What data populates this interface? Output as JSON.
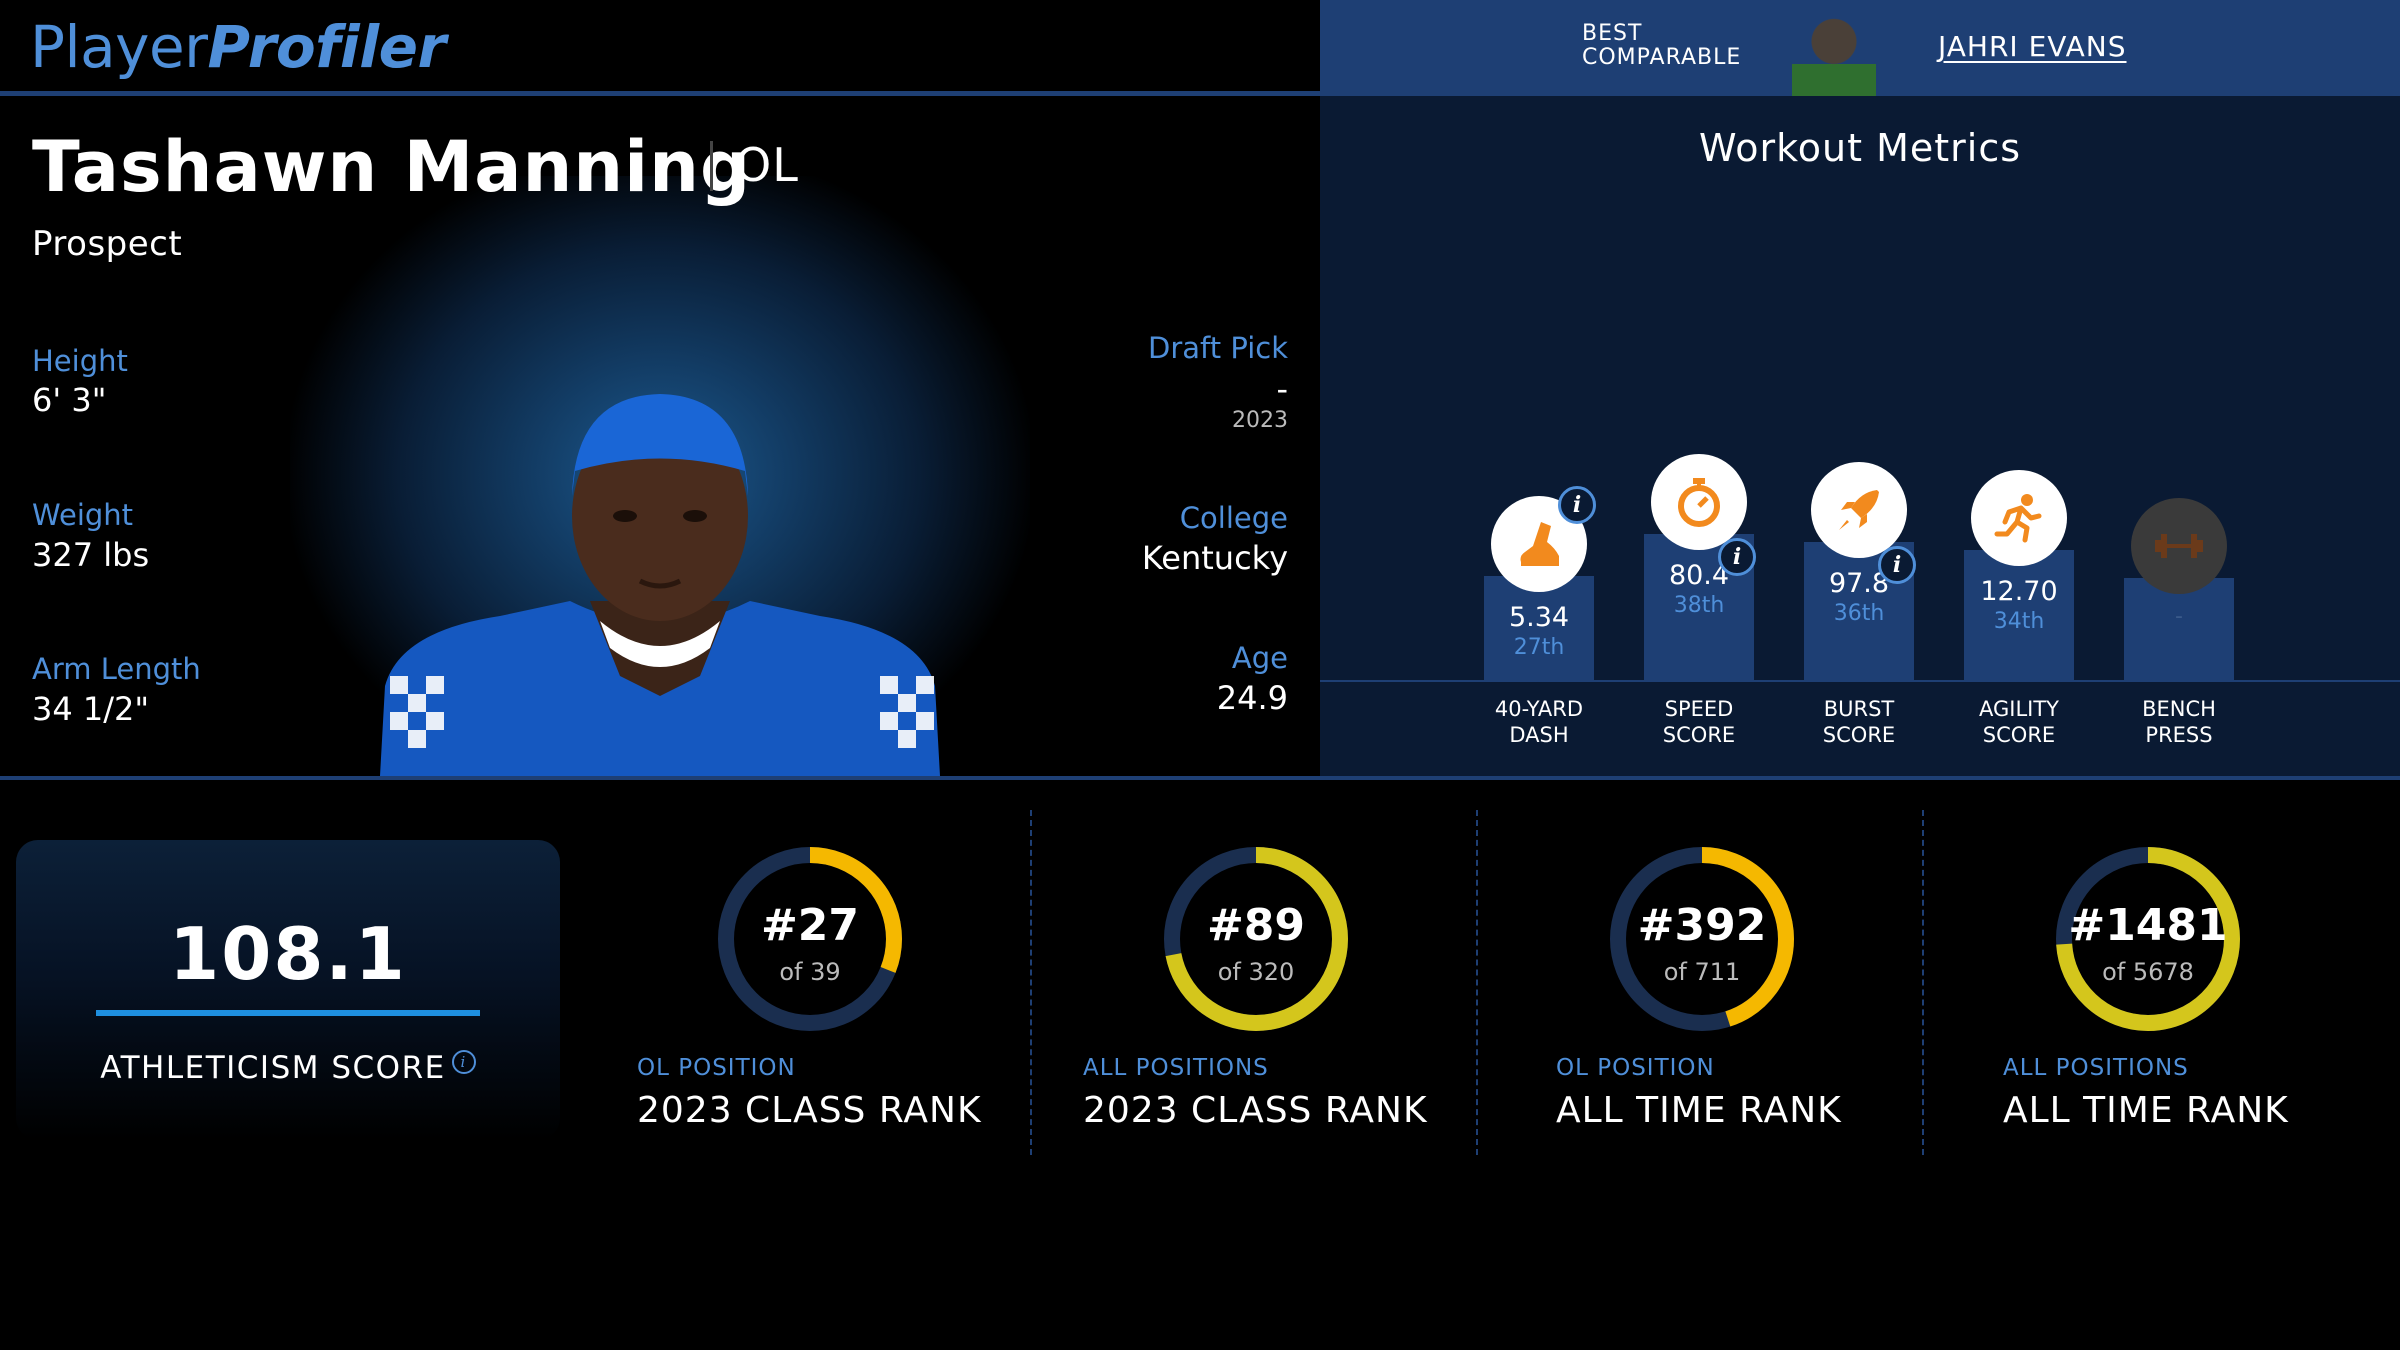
{
  "header": {
    "logo_player": "Player",
    "logo_profiler": "Profiler",
    "best_comparable_line1": "BEST",
    "best_comparable_line2": "COMPARABLE",
    "comparable_name": "JAHRI EVANS"
  },
  "player": {
    "name": "Tashawn Manning",
    "position": "OL",
    "status": "Prospect",
    "height_label": "Height",
    "height_value": "6' 3\"",
    "weight_label": "Weight",
    "weight_value": "327 lbs",
    "arm_label": "Arm Length",
    "arm_value": "34 1/2\"",
    "draft_label": "Draft Pick",
    "draft_value": "-",
    "draft_year": "2023",
    "college_label": "College",
    "college_value": "Kentucky",
    "age_label": "Age",
    "age_value": "24.9"
  },
  "workout": {
    "title": "Workout Metrics",
    "metrics": [
      {
        "label_line1": "40-YARD",
        "label_line2": "DASH",
        "value": "5.34",
        "percentile": "27th",
        "percentile_num": 27,
        "icon": "shoe-icon",
        "info": "i"
      },
      {
        "label_line1": "SPEED",
        "label_line2": "SCORE",
        "value": "80.4",
        "percentile": "38th",
        "percentile_num": 38,
        "icon": "stopwatch-icon",
        "info": "i"
      },
      {
        "label_line1": "BURST",
        "label_line2": "SCORE",
        "value": "97.8",
        "percentile": "36th",
        "percentile_num": 36,
        "icon": "rocket-icon",
        "info": "i"
      },
      {
        "label_line1": "AGILITY",
        "label_line2": "SCORE",
        "value": "12.70",
        "percentile": "34th",
        "percentile_num": 34,
        "icon": "runner-icon"
      },
      {
        "label_line1": "BENCH",
        "label_line2": "PRESS",
        "value": "",
        "percentile": "-",
        "percentile_num": 0,
        "icon": "dumbbell-icon"
      }
    ]
  },
  "athleticism": {
    "score": "108.1",
    "label": "ATHLETICISM SCORE",
    "info": "i"
  },
  "ranks": [
    {
      "rank": "#27",
      "of": "of 39",
      "scope": "OL POSITION",
      "title": "2023 CLASS RANK",
      "fraction": 0.31,
      "color": "#f5b800"
    },
    {
      "rank": "#89",
      "of": "of 320",
      "scope": "ALL POSITIONS",
      "title": "2023 CLASS RANK",
      "fraction": 0.72,
      "color": "#d4c61c"
    },
    {
      "rank": "#392",
      "of": "of 711",
      "scope": "OL POSITION",
      "title": "ALL TIME RANK",
      "fraction": 0.45,
      "color": "#f5b800"
    },
    {
      "rank": "#1481",
      "of": "of 5678",
      "scope": "ALL POSITIONS",
      "title": "ALL TIME RANK",
      "fraction": 0.74,
      "color": "#d4c61c"
    }
  ],
  "colors": {
    "accent_blue": "#4f8fd9",
    "header_blue": "#1e3f74",
    "metric_orange": "#f28a1e",
    "ring_track": "#1a2e4f"
  }
}
